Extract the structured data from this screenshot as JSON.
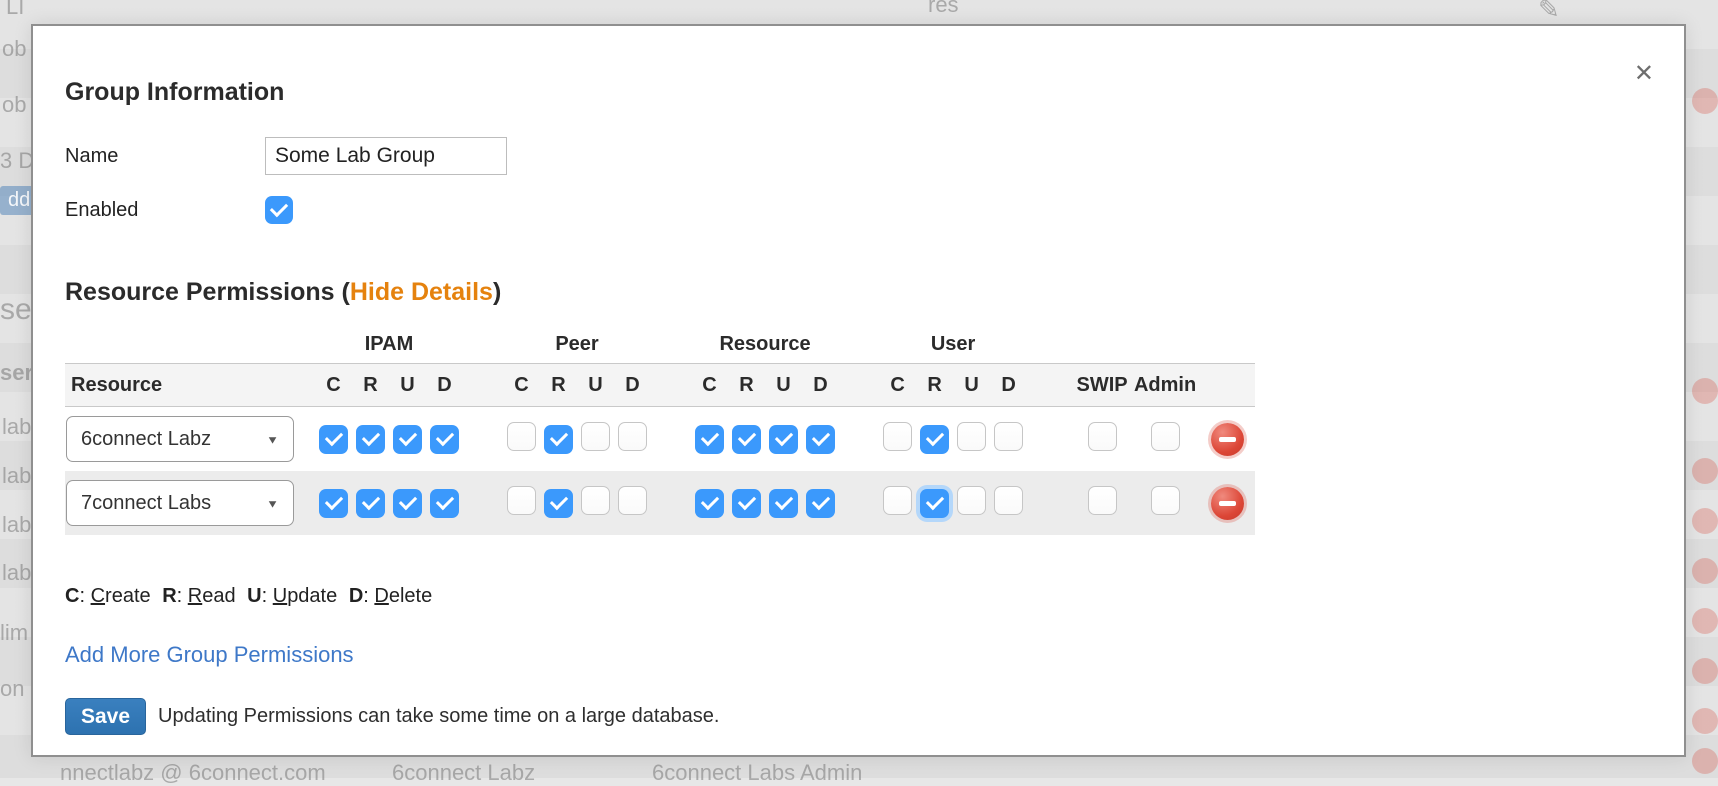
{
  "modal": {
    "title": "Group Information",
    "close_glyph": "✕",
    "name_label": "Name",
    "name_value": "Some Lab Group",
    "enabled_label": "Enabled",
    "enabled_checked": true,
    "permissions": {
      "heading_prefix": "Resource Permissions (",
      "toggle_link": "Hide Details",
      "heading_suffix": ")",
      "group_headers": [
        "IPAM",
        "Peer",
        "Resource",
        "User"
      ],
      "col_resource": "Resource",
      "crud_letters": [
        "C",
        "R",
        "U",
        "D"
      ],
      "swip_header": "SWIP",
      "admin_header": "Admin",
      "select_arrow_glyph": "▼",
      "rows": [
        {
          "resource": "6connect Labz",
          "ipam": [
            true,
            true,
            true,
            true
          ],
          "peer": [
            false,
            true,
            false,
            false
          ],
          "resource_perm": [
            true,
            true,
            true,
            true
          ],
          "user": [
            false,
            true,
            false,
            false
          ],
          "swip": false,
          "admin": false
        },
        {
          "resource": "7connect Labs",
          "ipam": [
            true,
            true,
            true,
            true
          ],
          "peer": [
            false,
            true,
            false,
            false
          ],
          "resource_perm": [
            true,
            true,
            true,
            true
          ],
          "user": [
            false,
            true,
            false,
            false
          ],
          "focus": {
            "group": "user",
            "index": 1
          },
          "swip": false,
          "admin": false
        }
      ],
      "legend_items": [
        {
          "abbr": "C",
          "sep": ": ",
          "first": "C",
          "rest": "reate"
        },
        {
          "abbr": "R",
          "sep": ": ",
          "first": "R",
          "rest": "ead"
        },
        {
          "abbr": "U",
          "sep": ": ",
          "first": "U",
          "rest": "pdate"
        },
        {
          "abbr": "D",
          "sep": ": ",
          "first": "D",
          "rest": "elete"
        }
      ]
    },
    "add_link": "Add More Group Permissions",
    "save_label": "Save",
    "save_note": "Updating Permissions can take some time on a large database."
  },
  "background": {
    "left_fragments": [
      "ob",
      "ob",
      "3 D",
      "dd",
      "se",
      "ser",
      "lab",
      "lab",
      "lab",
      "lab",
      "lim",
      "on"
    ],
    "top_fragments": [
      "LI",
      "res",
      "✎"
    ],
    "bottom_fragments": [
      "nnectlabz @ 6connect.com",
      "6connect Labz",
      "6connect Labs Admin"
    ]
  },
  "colors": {
    "checkbox_blue": "#3b99fc",
    "hide_details_orange": "#e5820e",
    "link_blue": "#3e78c8",
    "save_button_blue": "#2d72b0",
    "delete_red": "#dc4636",
    "modal_border": "#8f8f8f"
  }
}
